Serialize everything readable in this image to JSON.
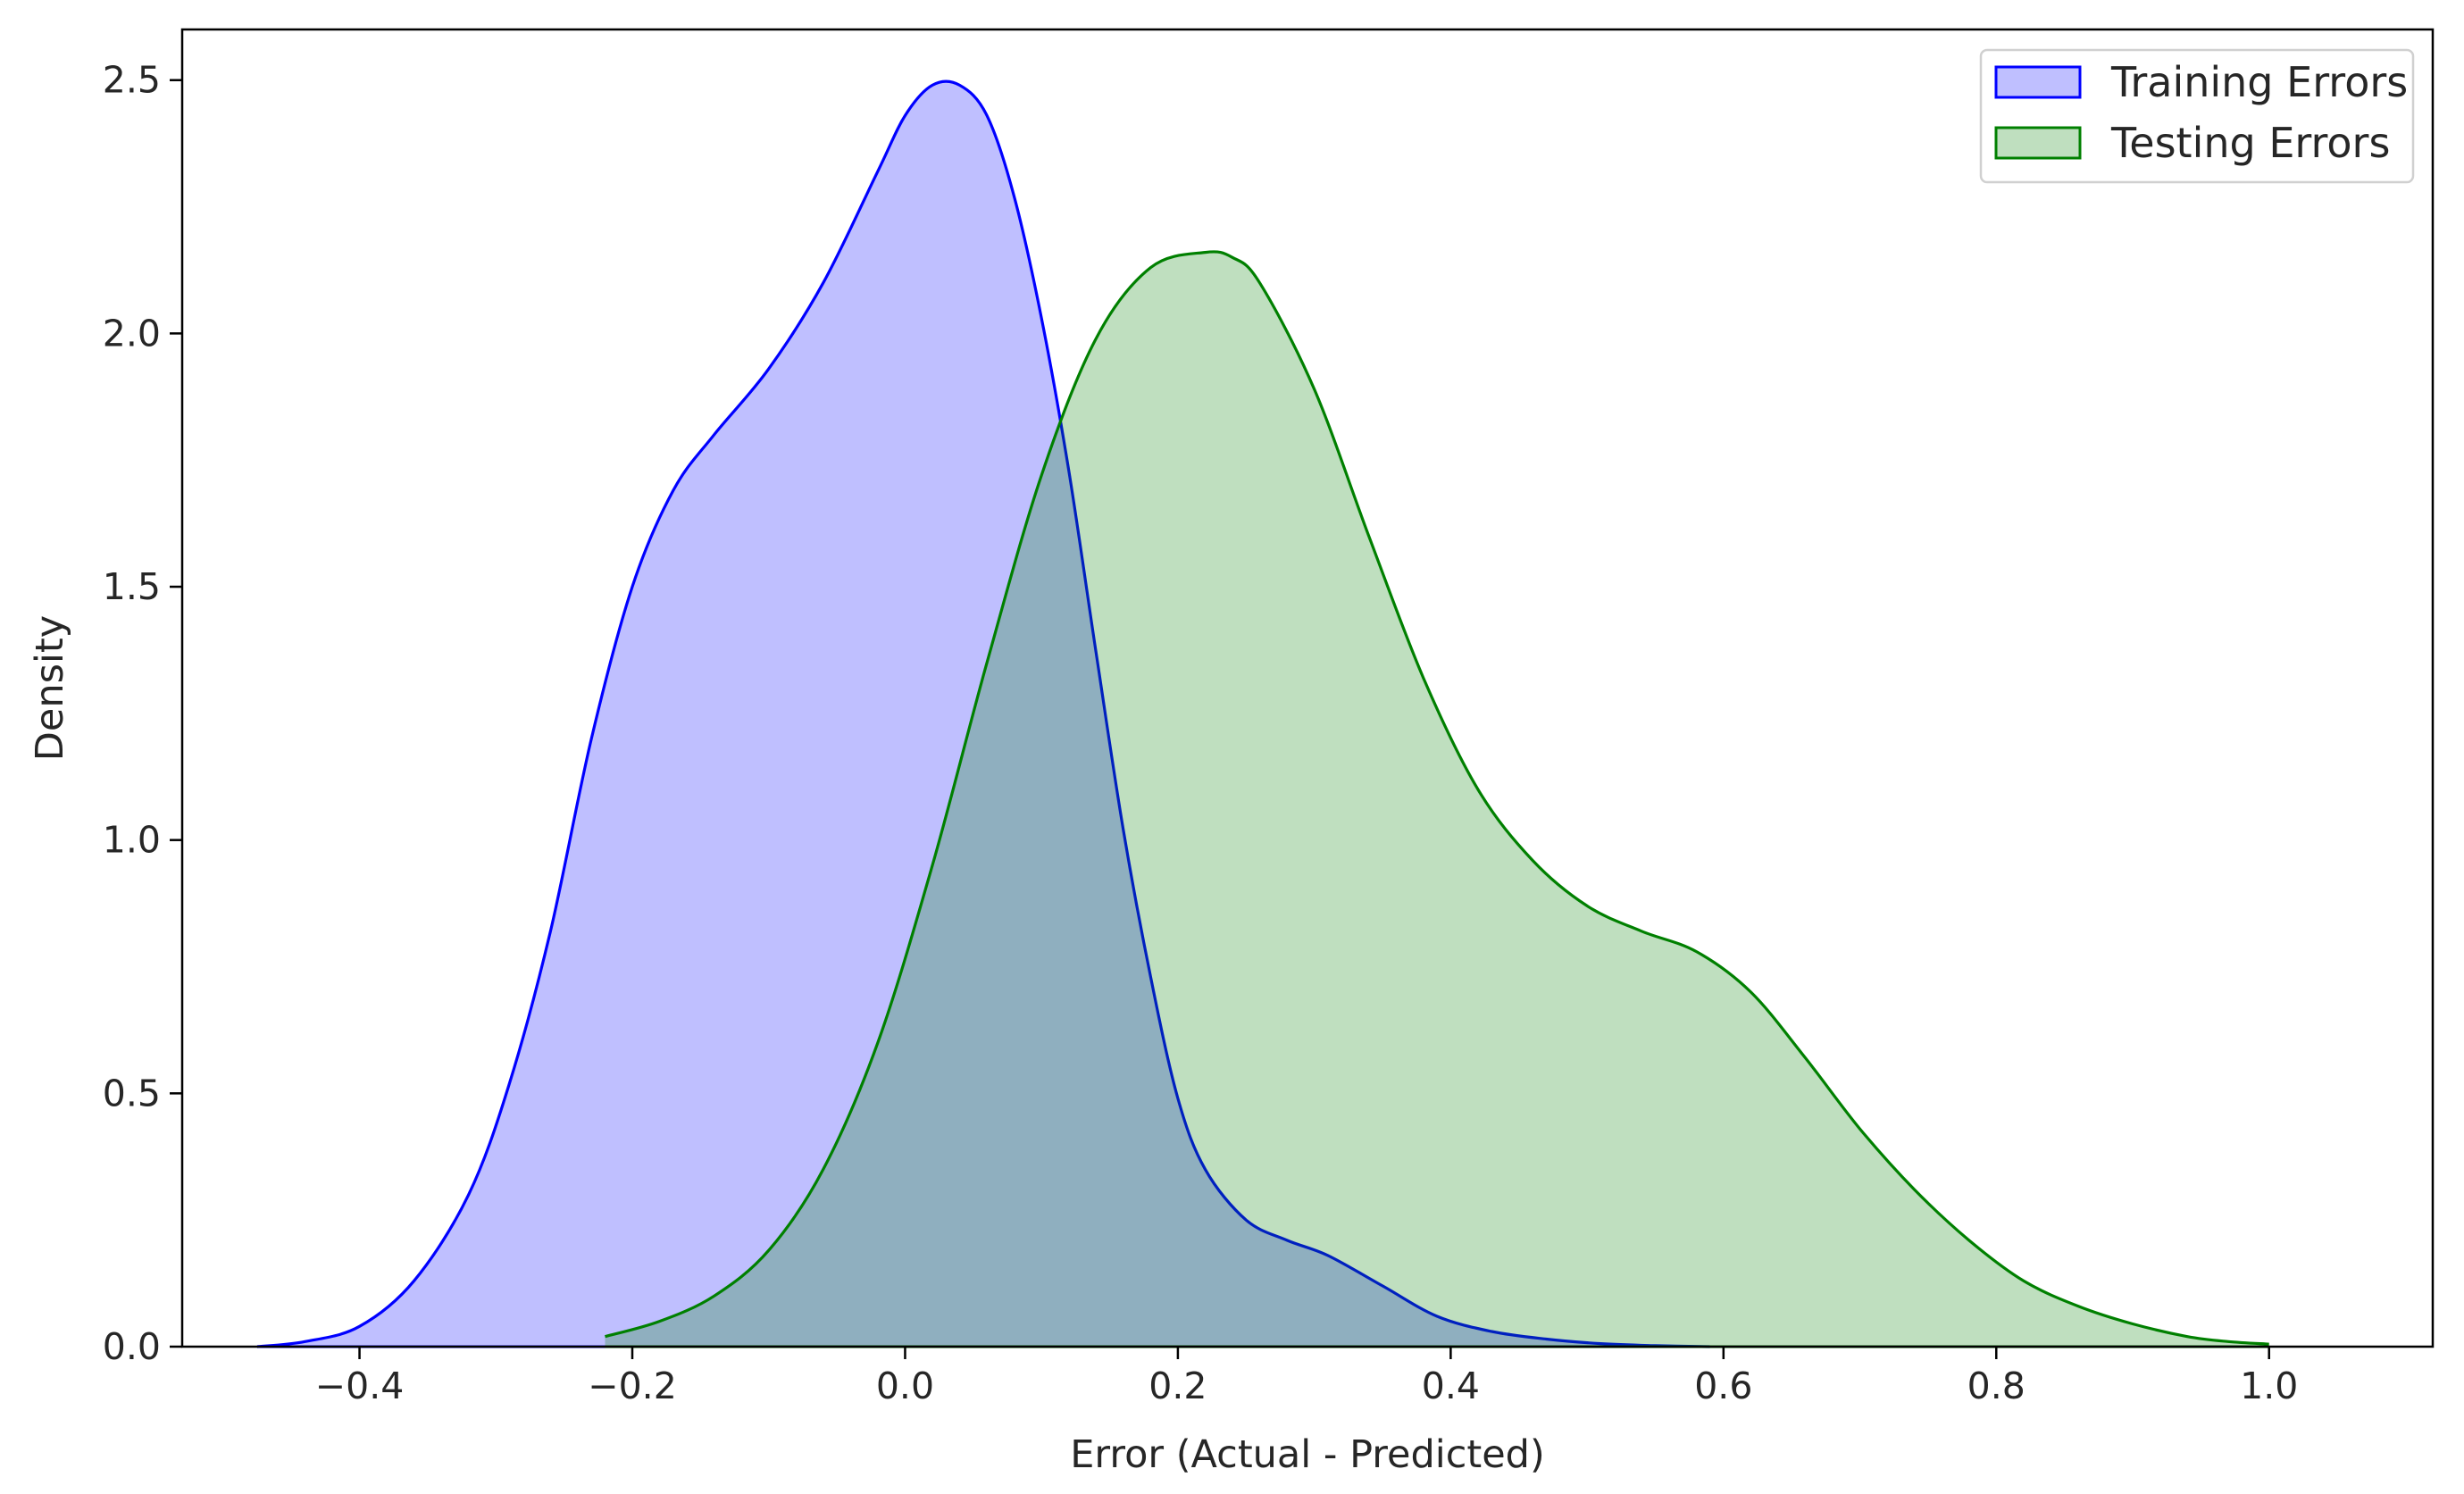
{
  "chart_data": {
    "type": "area",
    "title": "",
    "xlabel": "Error (Actual - Predicted)",
    "ylabel": "Density",
    "xlim": [
      -0.53,
      1.12
    ],
    "ylim": [
      0,
      2.6
    ],
    "xticks": [
      -0.4,
      -0.2,
      0.0,
      0.2,
      0.4,
      0.6,
      0.8,
      1.0
    ],
    "xtick_labels": [
      "−0.4",
      "−0.2",
      "0.0",
      "0.2",
      "0.4",
      "0.6",
      "0.8",
      "1.0"
    ],
    "yticks": [
      0.0,
      0.5,
      1.0,
      1.5,
      2.0,
      2.5
    ],
    "ytick_labels": [
      "0.0",
      "0.5",
      "1.0",
      "1.5",
      "2.0",
      "2.5"
    ],
    "grid": false,
    "legend_position": "top-right",
    "series": [
      {
        "name": "Training Errors",
        "color": "#0000ff",
        "fill": "#0000ff",
        "fill_alpha": 0.25,
        "x": [
          -0.475,
          -0.44,
          -0.4,
          -0.36,
          -0.32,
          -0.29,
          -0.26,
          -0.23,
          -0.2,
          -0.17,
          -0.14,
          -0.1,
          -0.06,
          -0.02,
          0.0,
          0.02,
          0.04,
          0.06,
          0.08,
          0.1,
          0.12,
          0.14,
          0.16,
          0.18,
          0.2,
          0.22,
          0.25,
          0.28,
          0.31,
          0.35,
          0.39,
          0.43,
          0.47,
          0.51,
          0.55,
          0.59
        ],
        "y": [
          0.0,
          0.01,
          0.04,
          0.13,
          0.3,
          0.52,
          0.82,
          1.2,
          1.5,
          1.69,
          1.8,
          1.93,
          2.1,
          2.32,
          2.43,
          2.49,
          2.49,
          2.43,
          2.27,
          2.03,
          1.73,
          1.37,
          1.02,
          0.73,
          0.49,
          0.35,
          0.25,
          0.21,
          0.18,
          0.12,
          0.06,
          0.03,
          0.015,
          0.006,
          0.002,
          0.0
        ]
      },
      {
        "name": "Testing Errors",
        "color": "#008000",
        "fill": "#008000",
        "fill_alpha": 0.25,
        "x": [
          -0.22,
          -0.18,
          -0.14,
          -0.1,
          -0.06,
          -0.02,
          0.02,
          0.06,
          0.1,
          0.14,
          0.18,
          0.22,
          0.24,
          0.26,
          0.3,
          0.34,
          0.38,
          0.42,
          0.46,
          0.5,
          0.54,
          0.58,
          0.62,
          0.66,
          0.7,
          0.74,
          0.78,
          0.82,
          0.86,
          0.9,
          0.94,
          0.97,
          1.0
        ],
        "y": [
          0.02,
          0.05,
          0.1,
          0.19,
          0.35,
          0.6,
          0.95,
          1.35,
          1.72,
          1.99,
          2.13,
          2.16,
          2.15,
          2.1,
          1.89,
          1.6,
          1.32,
          1.1,
          0.96,
          0.87,
          0.82,
          0.78,
          0.7,
          0.57,
          0.43,
          0.31,
          0.21,
          0.13,
          0.08,
          0.045,
          0.02,
          0.01,
          0.005
        ]
      }
    ]
  }
}
